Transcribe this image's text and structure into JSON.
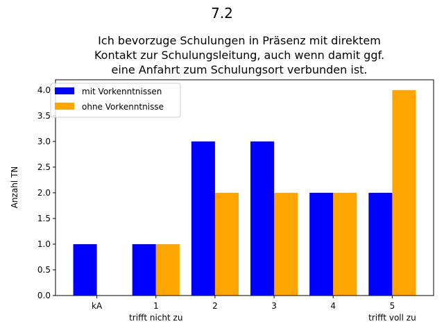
{
  "figure": {
    "suptitle": "7.2"
  },
  "chart_data": {
    "type": "bar",
    "title_lines": [
      "Ich bevorzuge Schulungen in Präsenz mit direktem",
      "Kontakt zur Schulungsleitung, auch wenn damit ggf.",
      "eine Anfahrt zum Schulungsort verbunden ist."
    ],
    "xlabel": "",
    "ylabel": "Anzahl TN",
    "categories": [
      "kA",
      "1",
      "2",
      "3",
      "4",
      "5"
    ],
    "category_sublabels": [
      "",
      "trifft nicht zu",
      "",
      "",
      "",
      "trifft voll zu"
    ],
    "series": [
      {
        "name": "mit Vorkenntnissen",
        "color": "#0000ff",
        "values": [
          1,
          1,
          3,
          3,
          2,
          2
        ]
      },
      {
        "name": "ohne Vorkenntnisse",
        "color": "#ffa500",
        "values": [
          0,
          1,
          2,
          2,
          2,
          4
        ]
      }
    ],
    "ylim": [
      0,
      4.2
    ],
    "yticks": [
      "0.0",
      "0.5",
      "1.0",
      "1.5",
      "2.0",
      "2.5",
      "3.0",
      "3.5",
      "4.0"
    ],
    "grid": false,
    "legend_position": "top-left"
  }
}
